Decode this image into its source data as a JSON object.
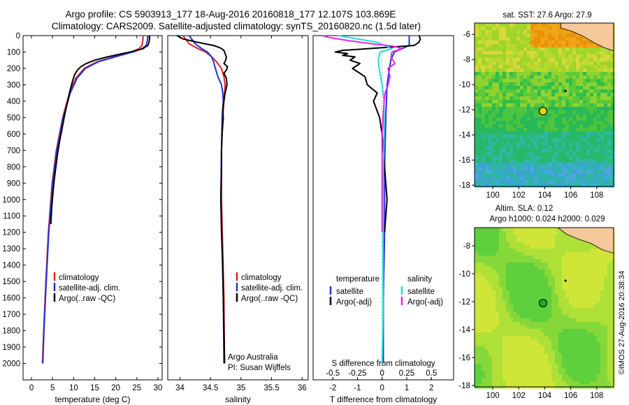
{
  "title_line1": "Argo profile: CS 5903913_177 18-Aug-2016 20160818_177 12.107S 103.869E",
  "title_line2": "Climatology: CARS2009. Satellite-adjusted climatology: synTS_20160820.nc (1.5d later)",
  "side_stamp": "©IMOS 27-Aug-2016 20:38:34",
  "colors": {
    "climatology": "#e32020",
    "satellite": "#2030dd",
    "argo": "#000000",
    "satellite_s": "#22dddd",
    "argo_s": "#ee22ee"
  },
  "chart_data": [
    {
      "type": "line",
      "id": "temperature",
      "xlabel": "temperature (deg C)",
      "xlim": [
        -2,
        31
      ],
      "ylim": [
        2100,
        0
      ],
      "xticks": [
        0,
        5,
        10,
        15,
        20,
        25,
        30
      ],
      "yticks": [
        0,
        100,
        200,
        300,
        400,
        500,
        600,
        700,
        800,
        900,
        1000,
        1100,
        1200,
        1300,
        1400,
        1500,
        1600,
        1700,
        1800,
        1900,
        2000
      ],
      "legend": [
        "climatology",
        "satellite-adj. clim.",
        "Argo(..raw -QC)"
      ],
      "legend_position": "lower-right",
      "series": [
        {
          "name": "climatology",
          "color_key": "climatology",
          "y": [
            0,
            30,
            60,
            80,
            100,
            130,
            160,
            200,
            260,
            350,
            500,
            700,
            900,
            1200,
            1500,
            1800,
            2000
          ],
          "x": [
            26.5,
            26.4,
            26.2,
            25.5,
            23.5,
            19.5,
            15.5,
            12.5,
            10.5,
            9.0,
            7.4,
            5.9,
            4.9,
            4.0,
            3.4,
            2.9,
            2.6
          ]
        },
        {
          "name": "satellite-adj. clim.",
          "color_key": "satellite",
          "y": [
            0,
            30,
            60,
            80,
            100,
            130,
            160,
            200,
            260,
            350,
            500,
            700,
            900,
            1200,
            1500,
            1800,
            2000
          ],
          "x": [
            27.6,
            27.5,
            27.2,
            26.2,
            24.0,
            19.8,
            15.8,
            12.8,
            10.8,
            9.2,
            7.5,
            6.0,
            5.0,
            4.1,
            3.5,
            2.95,
            2.7
          ]
        },
        {
          "name": "Argo(..raw -QC)",
          "color_key": "argo",
          "y": [
            0,
            20,
            40,
            60,
            80,
            95,
            110,
            130,
            150,
            170,
            190,
            210,
            240,
            280,
            330,
            400,
            480,
            560,
            640,
            720,
            800,
            880,
            960,
            1050,
            1150
          ],
          "x": [
            28.0,
            28.0,
            27.9,
            27.6,
            26.4,
            24.3,
            21.5,
            18.0,
            15.0,
            13.0,
            11.7,
            10.9,
            10.2,
            9.7,
            9.2,
            8.6,
            7.9,
            7.3,
            6.7,
            6.2,
            5.8,
            5.4,
            5.1,
            4.8,
            4.6
          ]
        }
      ]
    },
    {
      "type": "line",
      "id": "salinity",
      "xlabel": "salinity",
      "xlim": [
        33.8,
        36.1
      ],
      "ylim": [
        2100,
        0
      ],
      "xticks": [
        34,
        34.5,
        35,
        35.5,
        36
      ],
      "legend": [
        "climatology",
        "satellite-adj. clim.",
        "Argo(..raw -QC)"
      ],
      "legend_position": "lower-right",
      "annotation": [
        "Argo Australia",
        "PI: Susan Wijffels"
      ],
      "series": [
        {
          "name": "climatology",
          "color_key": "climatology",
          "y": [
            0,
            50,
            80,
            100,
            130,
            160,
            200,
            250,
            300,
            350,
            400,
            500,
            700,
            1000,
            1300,
            1600,
            2000
          ],
          "x": [
            34.05,
            34.15,
            34.3,
            34.42,
            34.52,
            34.6,
            34.68,
            34.72,
            34.74,
            34.73,
            34.72,
            34.7,
            34.68,
            34.68,
            34.7,
            34.72,
            34.73
          ]
        },
        {
          "name": "satellite-adj. clim.",
          "color_key": "satellite",
          "y": [
            0,
            50,
            80,
            100,
            130,
            160,
            200,
            250,
            300,
            350,
            400,
            500,
            700,
            1000,
            1300,
            1600,
            2000
          ],
          "x": [
            34.15,
            34.25,
            34.36,
            34.45,
            34.52,
            34.55,
            34.58,
            34.62,
            34.68,
            34.7,
            34.71,
            34.69,
            34.68,
            34.67,
            34.69,
            34.71,
            34.72
          ]
        },
        {
          "name": "Argo(..raw -QC)",
          "color_key": "argo",
          "y": [
            0,
            20,
            40,
            60,
            75,
            90,
            110,
            130,
            150,
            170,
            190,
            210,
            230,
            260,
            300,
            350,
            400,
            450,
            500,
            600,
            700,
            800,
            1000,
            1200,
            1400,
            1600,
            1800,
            2000
          ],
          "x": [
            33.95,
            34.05,
            34.28,
            34.55,
            34.66,
            34.72,
            34.74,
            34.76,
            34.75,
            34.72,
            34.78,
            34.76,
            34.72,
            34.76,
            34.77,
            34.74,
            34.72,
            34.7,
            34.71,
            34.69,
            34.68,
            34.68,
            34.67,
            34.68,
            34.7,
            34.71,
            34.72,
            34.73
          ]
        }
      ]
    },
    {
      "type": "line",
      "id": "difference",
      "xlabel": "T difference from climatology",
      "xlabel_top": "S difference from climatology",
      "xlim": [
        -2.8,
        2.9
      ],
      "ylim": [
        2100,
        0
      ],
      "xticks": [
        -2,
        -1,
        0,
        1,
        2
      ],
      "s_ticks": [
        -0.5,
        -0.25,
        0,
        0.25,
        0.5
      ],
      "s_scale": 4,
      "legend_t_heading": "temperature",
      "legend_s_heading": "salinity",
      "legend_t": [
        "satellite",
        "Argo(-adj)"
      ],
      "legend_s": [
        "satellite",
        "Argo(-adj)"
      ],
      "series": [
        {
          "name": "satellite",
          "color_key": "satellite",
          "y": [
            0,
            60,
            100,
            150,
            200,
            300,
            500,
            800,
            1200,
            1600,
            2000
          ],
          "x": [
            1.1,
            1.1,
            0.5,
            0.35,
            0.3,
            0.2,
            0.15,
            0.1,
            0.1,
            0.05,
            0.05
          ]
        },
        {
          "name": "Argo(-adj)",
          "color_key": "argo",
          "y": [
            0,
            20,
            40,
            60,
            70,
            80,
            90,
            100,
            110,
            120,
            130,
            150,
            170,
            200,
            250,
            300,
            350,
            400,
            500,
            600,
            700,
            800,
            900,
            1000,
            1100,
            1200
          ],
          "x": [
            1.5,
            1.55,
            1.5,
            1.3,
            0.4,
            -0.6,
            -1.6,
            -1.9,
            -1.4,
            -1.6,
            -1.1,
            -1.3,
            -0.9,
            -1.2,
            -0.7,
            -0.6,
            -0.2,
            -0.35,
            -0.1,
            0.0,
            0.05,
            0.1,
            0.15,
            0.2,
            0.15,
            0.1
          ]
        },
        {
          "name": "satellite",
          "color_key": "satellite_s",
          "y": [
            0,
            40,
            80,
            100,
            150,
            200,
            300,
            400,
            600,
            900,
            1300,
            1700,
            2000
          ],
          "x": [
            -0.45,
            -0.05,
            0.1,
            -0.02,
            -0.04,
            -0.03,
            0.0,
            0.02,
            0.02,
            0.01,
            0.01,
            0.01,
            0.0
          ]
        },
        {
          "name": "Argo(-adj)",
          "color_key": "argo_s",
          "y": [
            0,
            10,
            30,
            50,
            65,
            80,
            100,
            130,
            170,
            200,
            250,
            300,
            350,
            400,
            500,
            600,
            800,
            1000,
            1200
          ],
          "x": [
            -0.6,
            -0.55,
            -0.35,
            -0.1,
            0.12,
            0.2,
            0.1,
            0.09,
            0.13,
            0.06,
            0.08,
            0.06,
            0.03,
            0.02,
            0.01,
            0.0,
            0.0,
            0.0,
            0.0
          ]
        }
      ]
    },
    {
      "type": "heatmap",
      "id": "sst-map",
      "title": "sat. SST: 27.6  Argo: 27.9",
      "xlim": [
        98.6,
        109.3
      ],
      "ylim": [
        -18.1,
        -5.1
      ],
      "xticks": [
        100,
        102,
        104,
        106,
        108
      ],
      "yticks": [
        -6,
        -8,
        -10,
        -12,
        -14,
        -16,
        -18
      ],
      "argo_location": [
        103.869,
        -12.107
      ]
    },
    {
      "type": "heatmap",
      "id": "sla-map",
      "title": [
        "Altim. SLA: 0.12",
        "Argo h1000: 0.024 h2000: 0.029"
      ],
      "xlim": [
        98.6,
        109.3
      ],
      "ylim": [
        -18.1,
        -6.7
      ],
      "xticks": [
        100,
        102,
        104,
        106,
        108
      ],
      "yticks": [
        -8,
        -10,
        -12,
        -14,
        -16,
        -18
      ],
      "argo_location": [
        103.869,
        -12.107
      ]
    }
  ]
}
